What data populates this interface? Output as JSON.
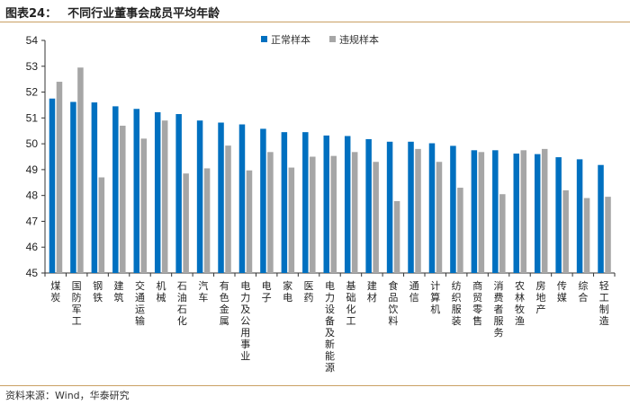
{
  "title": {
    "label": "图表24：",
    "text": "不同行业董事会成员平均年龄"
  },
  "source": "资料来源：Wind，华泰研究",
  "chart_data": {
    "type": "bar",
    "title": "不同行业董事会成员平均年龄",
    "xlabel": "",
    "ylabel": "",
    "ylim": [
      45,
      54
    ],
    "yticks": [
      45,
      46,
      47,
      48,
      49,
      50,
      51,
      52,
      53,
      54
    ],
    "grid": false,
    "legend_position": "top-right",
    "categories": [
      "煤炭",
      "国防军工",
      "钢铁",
      "建筑",
      "交通运输",
      "机械",
      "石油石化",
      "汽车",
      "有色金属",
      "电力及公用事业",
      "电子",
      "家电",
      "医药",
      "电力设备及新能源",
      "基础化工",
      "建材",
      "食品饮料",
      "通信",
      "计算机",
      "纺织服装",
      "商贸零售",
      "消费者服务",
      "农林牧渔",
      "房地产",
      "传媒",
      "综合",
      "轻工制造"
    ],
    "series": [
      {
        "name": "正常样本",
        "color": "#0070c0",
        "values": [
          51.75,
          51.62,
          51.6,
          51.45,
          51.35,
          51.22,
          51.15,
          50.9,
          50.82,
          50.75,
          50.58,
          50.45,
          50.45,
          50.32,
          50.3,
          50.18,
          50.08,
          50.08,
          50.02,
          49.92,
          49.75,
          49.75,
          49.62,
          49.6,
          49.48,
          49.4,
          49.18
        ]
      },
      {
        "name": "违规样本",
        "color": "#a6a6a6",
        "values": [
          52.4,
          52.95,
          48.7,
          50.7,
          50.2,
          50.9,
          48.85,
          49.05,
          49.93,
          48.97,
          49.68,
          49.08,
          49.5,
          49.53,
          49.68,
          49.3,
          47.78,
          49.8,
          49.3,
          48.3,
          49.68,
          48.05,
          49.75,
          49.8,
          48.2,
          47.9,
          47.95
        ]
      }
    ]
  }
}
